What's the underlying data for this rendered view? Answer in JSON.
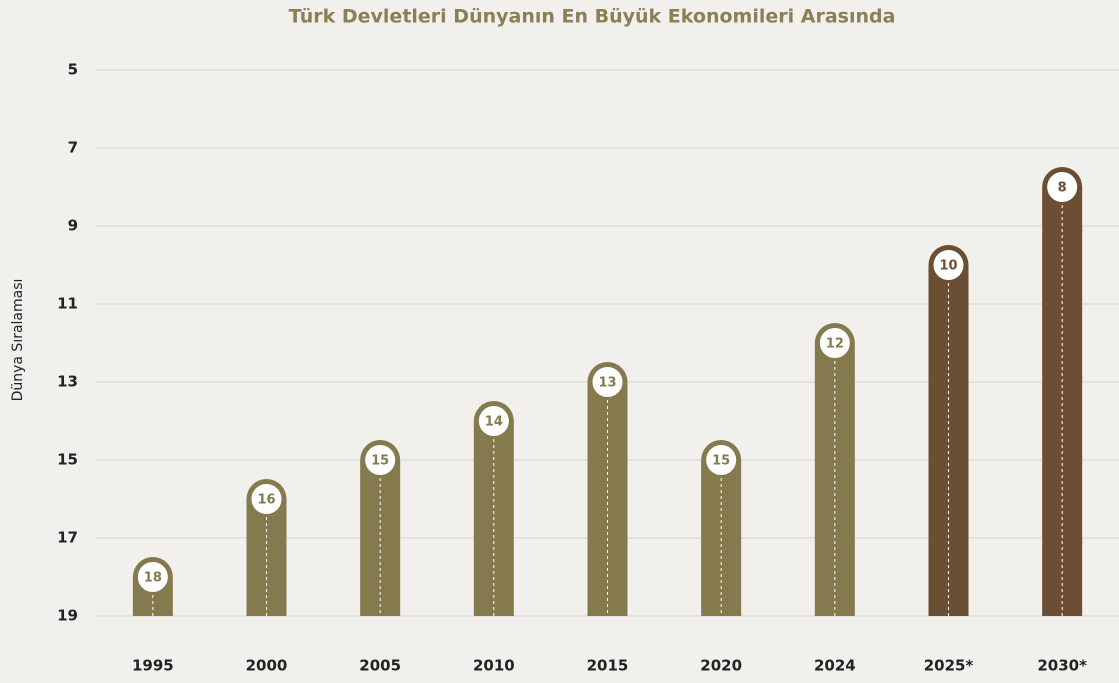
{
  "chart_data": {
    "type": "bar",
    "title": "Türk Devletleri Dünyanın En Büyük Ekonomileri Arasında",
    "y_label": "Dünya Sıralaması",
    "categories": [
      "1995",
      "2000",
      "2005",
      "2010",
      "2015",
      "2020",
      "2024",
      "2025*",
      "2030*"
    ],
    "values": [
      18,
      16,
      15,
      14,
      13,
      15,
      12,
      10,
      8
    ],
    "colors": [
      "#857a4d",
      "#857a4d",
      "#857a4d",
      "#857a4d",
      "#857a4d",
      "#857a4d",
      "#857a4d",
      "#6b4e34",
      "#6b4e34"
    ],
    "ylim": [
      19,
      5
    ],
    "yticks": [
      5,
      7,
      9,
      11,
      13,
      15,
      17,
      19
    ],
    "grid": true
  }
}
